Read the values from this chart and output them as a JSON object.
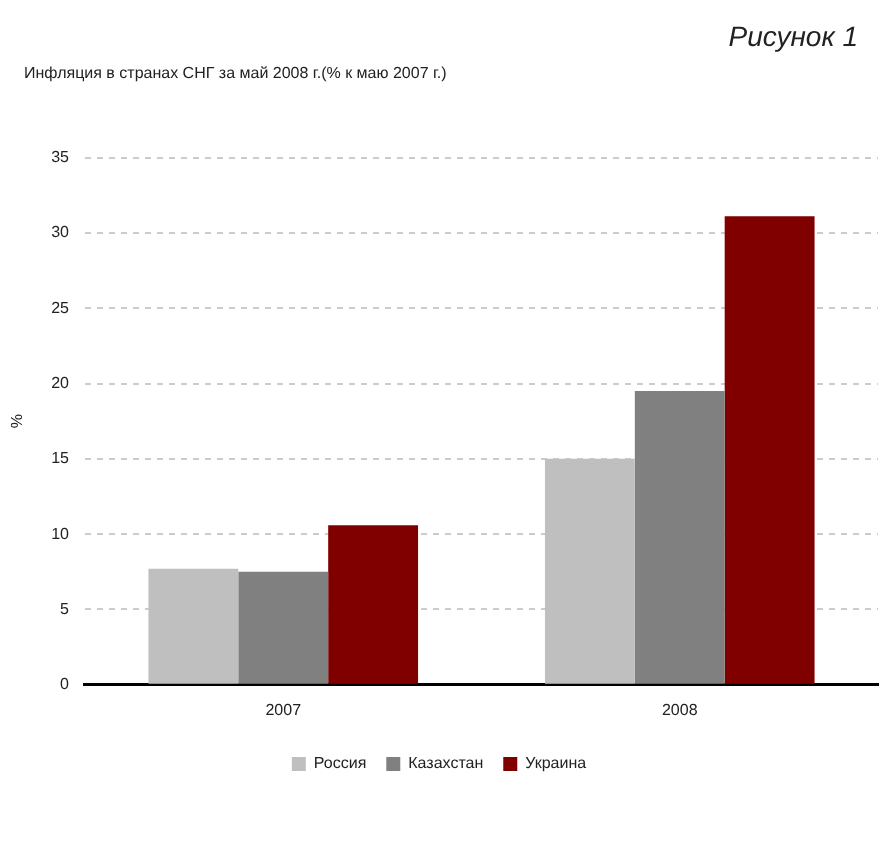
{
  "chart_data": {
    "type": "bar",
    "title": "Инфляция в странах СНГ за май 2008 г.(% к маю 2007 г.)",
    "ylabel": "%",
    "annotations": [
      "Рисунок 1"
    ],
    "categories": [
      "2007",
      "2008"
    ],
    "series": [
      {
        "name": "Россия",
        "color": "#bfbfbf",
        "values": [
          7.7,
          15.0
        ]
      },
      {
        "name": "Казахстан",
        "color": "#808080",
        "values": [
          7.5,
          19.5
        ]
      },
      {
        "name": "Украина",
        "color": "#800000",
        "values": [
          10.6,
          31.1
        ]
      }
    ],
    "ylim": [
      0,
      35
    ],
    "yticks": [
      0,
      5,
      10,
      15,
      20,
      25,
      30,
      35
    ],
    "grid": "y",
    "legend": "bottom"
  }
}
